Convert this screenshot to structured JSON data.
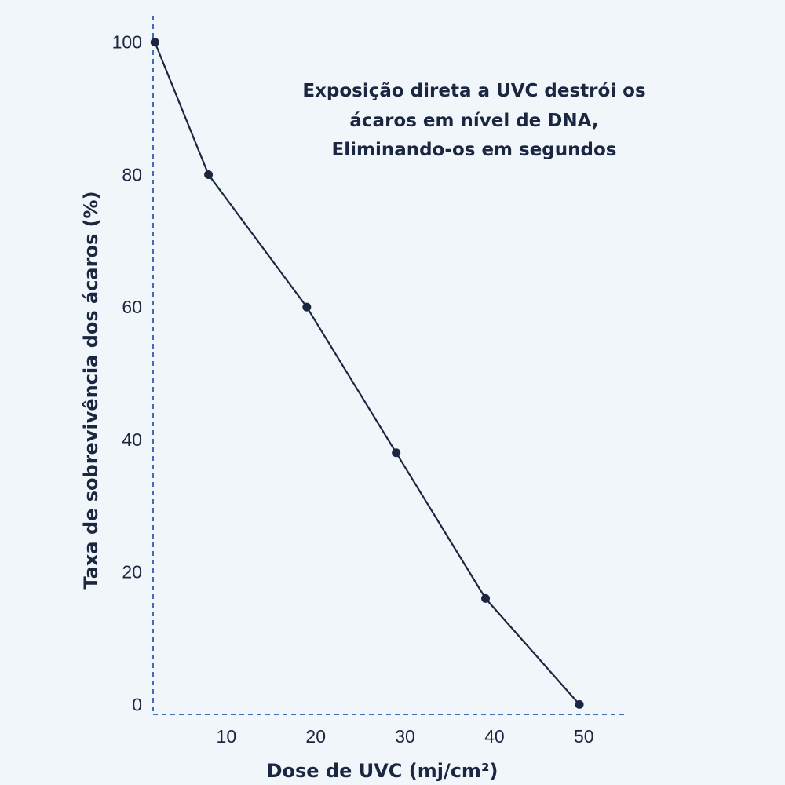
{
  "chart_data": {
    "type": "line",
    "title": "",
    "xlabel": "Dose de UVC (mj/cm²)",
    "ylabel": "Taxa de sobrevivência dos ácaros (%)",
    "annotation": [
      "Exposição direta a UVC destrói os",
      "ácaros em nível de DNA,",
      "Eliminando-os em segundos"
    ],
    "xticks": [
      10,
      20,
      30,
      40,
      50
    ],
    "yticks": [
      0,
      20,
      40,
      60,
      80,
      100
    ],
    "xlim": [
      1.8,
      54.5
    ],
    "ylim": [
      -1.5,
      104
    ],
    "grid": false,
    "series": [
      {
        "x": [
          2,
          8,
          19,
          29,
          39,
          49.5
        ],
        "y": [
          100,
          80,
          60,
          38,
          16,
          0
        ]
      }
    ],
    "colors": {
      "line": "#1b2640",
      "axis": "#3f6fb2",
      "text": "#1b2640",
      "background": "#f1f6fa"
    }
  }
}
